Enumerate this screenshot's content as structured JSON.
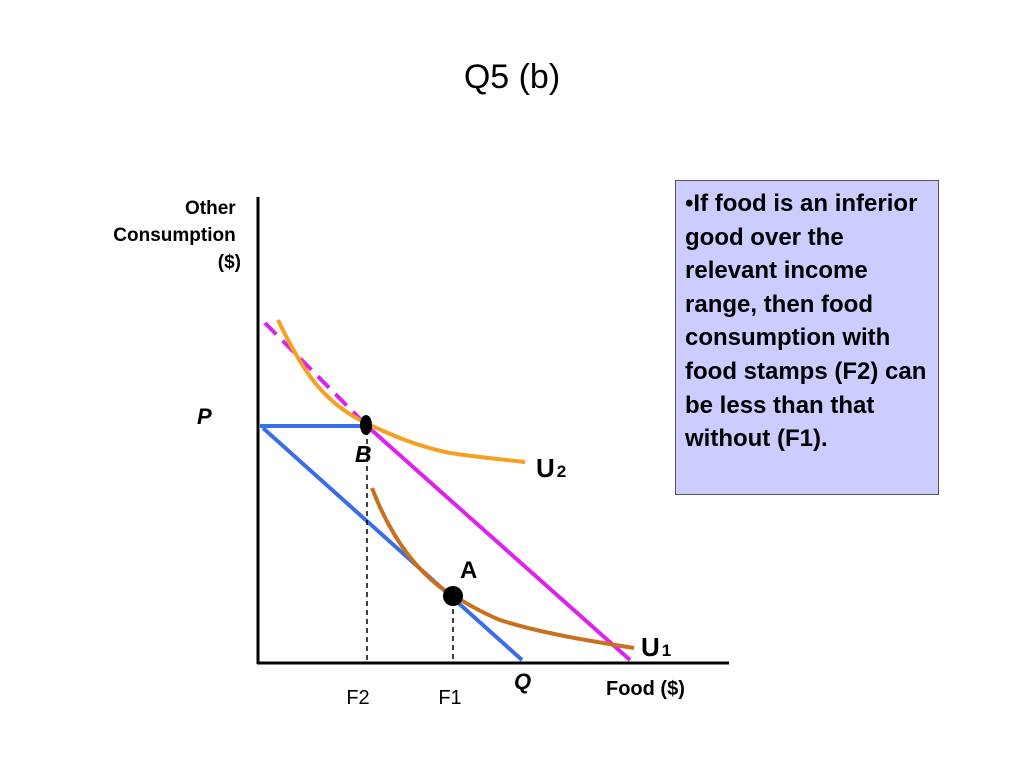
{
  "title": "Q5 (b)",
  "axes": {
    "y_label_lines": [
      "Other",
      "Consumption",
      "($)"
    ],
    "x_label": "Food ($)"
  },
  "labels": {
    "p": "P",
    "q": "Q",
    "b": "B",
    "a": "A",
    "u2": "U",
    "u2_sub": "2",
    "u1": "U",
    "u1_sub": "1",
    "f2": "F2",
    "f1": "F1"
  },
  "note": "•If food is an inferior good over the relevant income range, then food consumption with food stamps (F2) can be less than that without (F1).",
  "colors": {
    "budget_line": "#3a6ee8",
    "subsidized_line": "#dd22ee",
    "indifference_u2": "#f5a020",
    "indifference_u1": "#c8701c",
    "note_background": "#ccccff"
  }
}
